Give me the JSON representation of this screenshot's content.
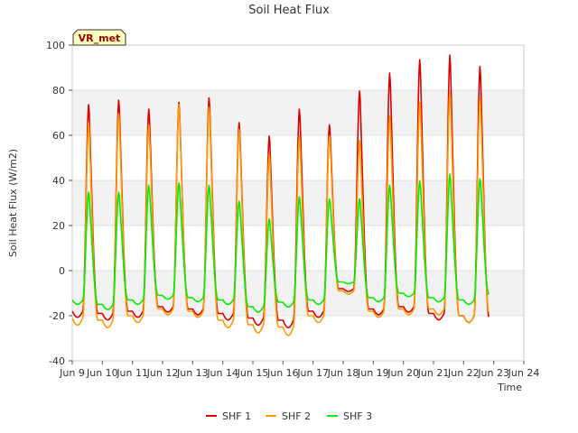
{
  "chart_data": {
    "type": "line",
    "title": "Soil Heat Flux",
    "xlabel": "Time",
    "ylabel": "Soil Heat Flux (W/m2)",
    "ylim": [
      -40,
      100
    ],
    "xlim": [
      9,
      24
    ],
    "yticks": [
      -40,
      -20,
      0,
      20,
      40,
      60,
      80,
      100
    ],
    "xticks": [
      {
        "v": 9,
        "label": "Jun 9"
      },
      {
        "v": 10,
        "label": "Jun 10"
      },
      {
        "v": 11,
        "label": "Jun 11"
      },
      {
        "v": 12,
        "label": "Jun 12"
      },
      {
        "v": 13,
        "label": "Jun 13"
      },
      {
        "v": 14,
        "label": "Jun 14"
      },
      {
        "v": 15,
        "label": "Jun 15"
      },
      {
        "v": 16,
        "label": "Jun 16"
      },
      {
        "v": 17,
        "label": "Jun 17"
      },
      {
        "v": 18,
        "label": "Jun 18"
      },
      {
        "v": 19,
        "label": "Jun 19"
      },
      {
        "v": 20,
        "label": "Jun 20"
      },
      {
        "v": 21,
        "label": "Jun 21"
      },
      {
        "v": 22,
        "label": "Jun 22"
      },
      {
        "v": 23,
        "label": "Jun 23"
      },
      {
        "v": 24,
        "label": "Jun 24"
      }
    ],
    "bands": [
      [
        -20,
        0
      ],
      [
        20,
        40
      ],
      [
        60,
        80
      ]
    ],
    "annotation": "VR_met",
    "legend_position": "bottom",
    "peak_time_day_fraction": 0.55,
    "series": [
      {
        "name": "SHF 1",
        "color": "#dd0000",
        "peaks": [
          74,
          76,
          72,
          75,
          77,
          66,
          60,
          72,
          65,
          80,
          88,
          94,
          96,
          91
        ],
        "troughs": [
          -18,
          -19,
          -18,
          -16,
          -17,
          -19,
          -21,
          -22,
          -18,
          -8,
          -17,
          -16,
          -19,
          -20,
          -21
        ]
      },
      {
        "name": "SHF 2",
        "color": "#ff9900",
        "peaks": [
          66,
          70,
          65,
          74,
          73,
          63,
          52,
          60,
          60,
          58,
          69,
          75,
          80,
          77
        ],
        "troughs": [
          -21,
          -22,
          -20,
          -17,
          -18,
          -22,
          -24,
          -25,
          -20,
          -9,
          -18,
          -17,
          -17,
          -20,
          -19
        ]
      },
      {
        "name": "SHF 3",
        "color": "#00ee00",
        "peaks": [
          35,
          35,
          38,
          39,
          38,
          31,
          23,
          33,
          32,
          32,
          38,
          40,
          43,
          41
        ],
        "troughs": [
          -13,
          -15,
          -13,
          -11,
          -12,
          -13,
          -16,
          -14,
          -13,
          -5,
          -12,
          -10,
          -12,
          -13,
          -11
        ]
      }
    ]
  }
}
